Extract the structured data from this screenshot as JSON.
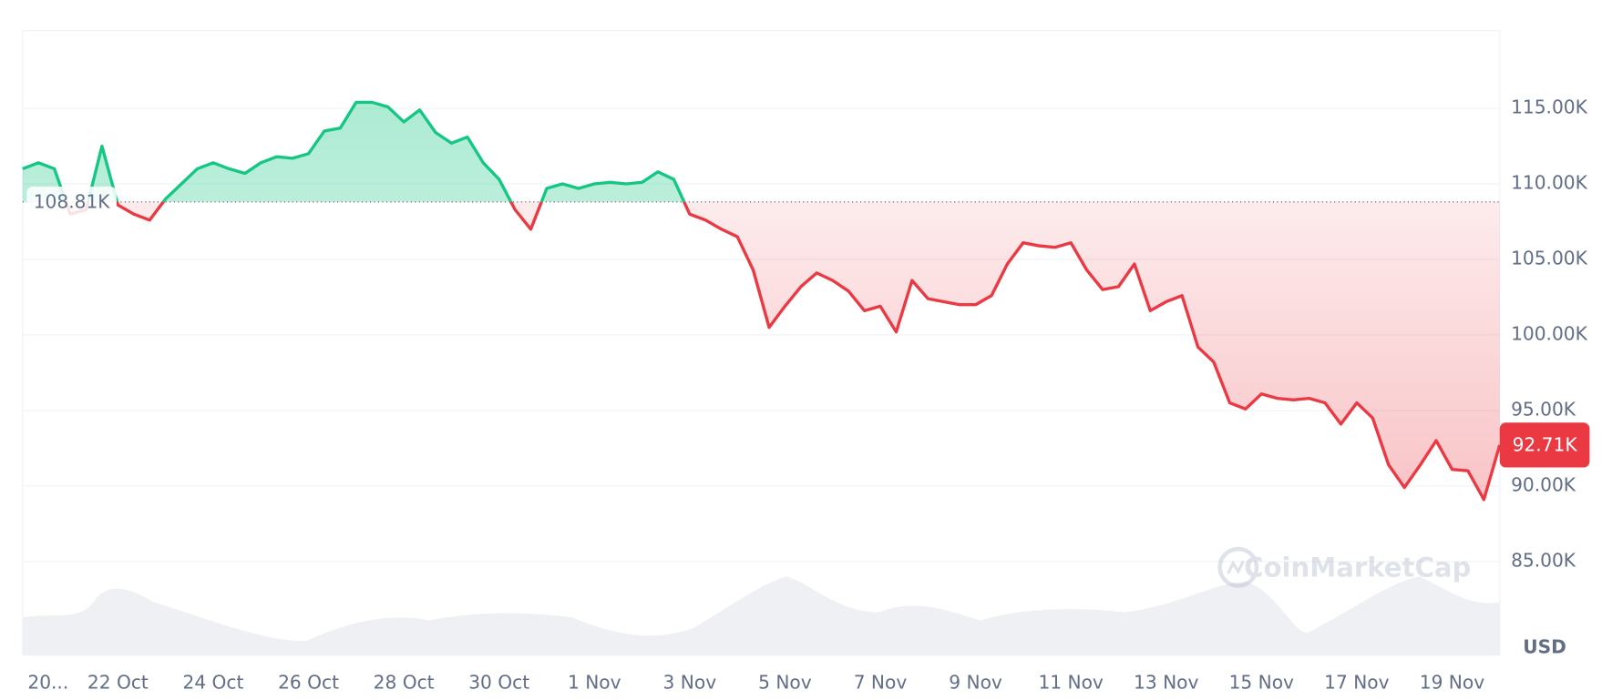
{
  "chart_data": {
    "type": "line",
    "categories": [
      "20...",
      null,
      null,
      null,
      null,
      null,
      "22 Oct",
      null,
      null,
      null,
      null,
      null,
      "24 Oct",
      null,
      null,
      null,
      null,
      null,
      "26 Oct",
      null,
      null,
      null,
      null,
      null,
      "28 Oct",
      null,
      null,
      null,
      null,
      null,
      "30 Oct",
      null,
      null,
      null,
      null,
      null,
      "1 Nov",
      null,
      null,
      null,
      null,
      null,
      "3 Nov",
      null,
      null,
      null,
      null,
      null,
      "5 Nov",
      null,
      null,
      null,
      null,
      null,
      "7 Nov",
      null,
      null,
      null,
      null,
      null,
      "9 Nov",
      null,
      null,
      null,
      null,
      null,
      "11 Nov",
      null,
      null,
      null,
      null,
      null,
      "13 Nov",
      null,
      null,
      null,
      null,
      null,
      "15 Nov",
      null,
      null,
      null,
      null,
      null,
      "17 Nov",
      null,
      null,
      null,
      null,
      null,
      "19 Nov",
      null,
      null,
      null
    ],
    "series": [
      {
        "values": [
          111000,
          111400,
          111000,
          108000,
          108300,
          112500,
          108600,
          108000,
          107600,
          109000,
          110000,
          111000,
          111400,
          111000,
          110700,
          111400,
          111800,
          111700,
          112000,
          113500,
          113700,
          115400,
          115400,
          115100,
          114100,
          114900,
          113400,
          112700,
          113100,
          111400,
          110300,
          108300,
          107000,
          109700,
          110000,
          109700,
          110000,
          110100,
          110000,
          110100,
          110800,
          110300,
          108000,
          107600,
          107000,
          106500,
          104300,
          100500,
          101900,
          103200,
          104100,
          103600,
          102900,
          101600,
          101900,
          100200,
          103600,
          102400,
          102200,
          102000,
          102000,
          102600,
          104700,
          106100,
          105900,
          105800,
          106100,
          104300,
          103000,
          103200,
          104700,
          101600,
          102200,
          102600,
          99200,
          98200,
          95500,
          95100,
          96100,
          95800,
          95700,
          95800,
          95500,
          94100,
          95500,
          94500,
          91400,
          89900,
          91400,
          93000,
          91100,
          91000,
          89100,
          92710
        ],
        "value_labels": [
          null,
          null,
          null,
          null,
          null,
          null,
          null,
          null,
          null,
          null,
          null,
          null,
          null,
          null,
          null,
          null,
          null,
          null,
          null,
          null,
          null,
          null,
          null,
          null,
          null,
          null,
          null,
          null,
          null,
          null,
          null,
          null,
          null,
          null,
          null,
          null,
          null,
          null,
          null,
          null,
          null,
          null,
          null,
          null,
          null,
          null,
          null,
          null,
          null,
          null,
          null,
          null,
          null,
          null,
          null,
          null,
          null,
          null,
          null,
          null,
          null,
          null,
          null,
          null,
          null,
          null,
          null,
          null,
          null,
          null,
          null,
          null,
          null,
          null,
          null,
          null,
          null,
          null,
          null,
          null,
          null,
          null,
          null,
          null,
          null,
          null,
          null,
          null,
          null,
          null,
          null,
          null,
          null,
          "92.71K"
        ]
      }
    ],
    "color_up": "#16c784",
    "color_down": "#ea3943",
    "baseline": {
      "value": 108810,
      "label": "108.81K"
    },
    "ylim": [
      78800,
      120150
    ],
    "yticks": [
      {
        "value": 85000,
        "label": "85.00K"
      },
      {
        "value": 90000,
        "label": "90.00K"
      },
      {
        "value": 95000,
        "label": "95.00K"
      },
      {
        "value": 100000,
        "label": "100.00K"
      },
      {
        "value": 105000,
        "label": "105.00K"
      },
      {
        "value": 110000,
        "label": "110.00K"
      },
      {
        "value": 115000,
        "label": "115.00K"
      }
    ],
    "y_unit": "USD",
    "watermark": "CoinMarketCap",
    "grid": true
  }
}
